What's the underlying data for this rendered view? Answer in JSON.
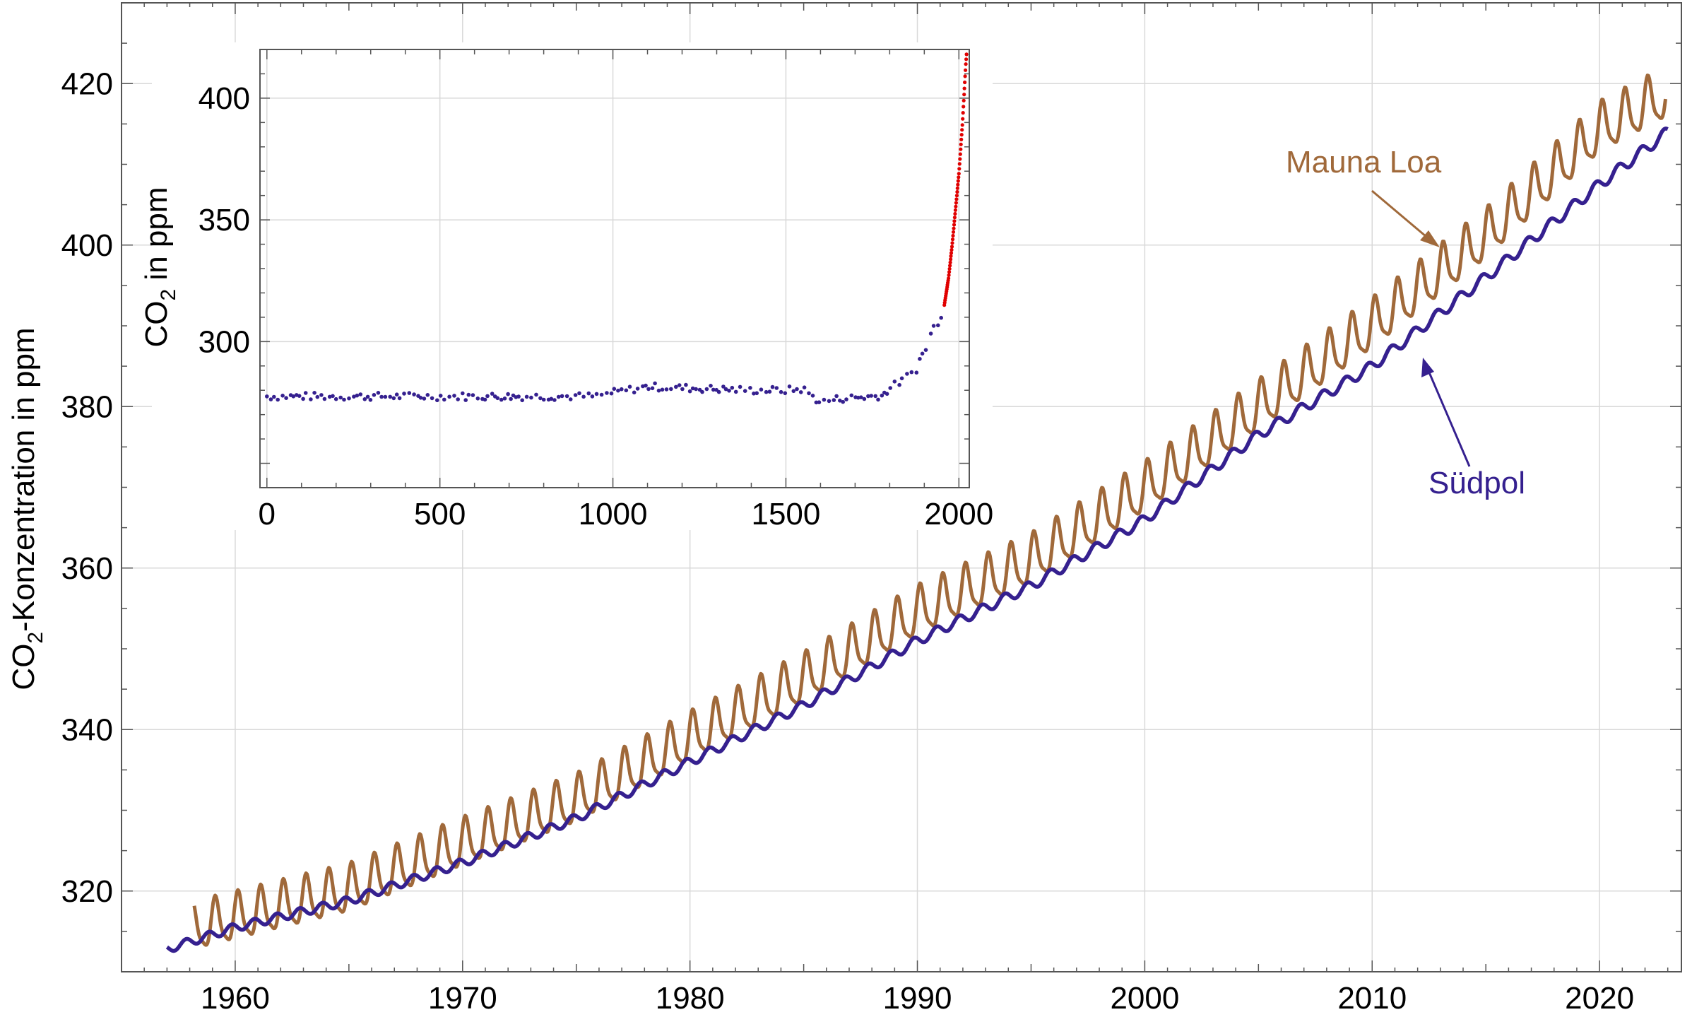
{
  "colors": {
    "mauna_loa": "#a0693a",
    "suedpol": "#35208f",
    "inset_modern": "#e00000",
    "grid": "#d9d9d9",
    "frame": "#555555"
  },
  "main": {
    "ylabel_prefix": "CO",
    "ylabel_sub": "2",
    "ylabel_suffix": "-Konzentration in ppm",
    "annotations": {
      "mauna_loa": "Mauna Loa",
      "suedpol": "Südpol"
    }
  },
  "inset": {
    "ylabel_prefix": "CO",
    "ylabel_sub": "2",
    "ylabel_suffix": " in ppm"
  },
  "chart_data": [
    {
      "type": "line",
      "xlim": [
        1955,
        2023.6
      ],
      "ylim": [
        310,
        430
      ],
      "xticks": [
        1960,
        1970,
        1980,
        1990,
        2000,
        2010,
        2020
      ],
      "yticks": [
        320,
        340,
        360,
        380,
        400,
        420
      ],
      "grid": true,
      "series": [
        {
          "name": "Mauna Loa",
          "x_start": 1958.2,
          "x_end": 2022.9,
          "trend_x": [
            1958,
            1965,
            1970,
            1975,
            1980,
            1985,
            1990,
            1995,
            2000,
            2005,
            2010,
            2015,
            2020,
            2022.9
          ],
          "trend_y": [
            315.2,
            320.0,
            325.7,
            331.1,
            338.8,
            346.1,
            354.4,
            360.8,
            369.7,
            379.8,
            389.9,
            401.0,
            414.2,
            418.5
          ],
          "seasonal_amplitude": [
            3.3,
            3.5
          ]
        },
        {
          "name": "Südpol",
          "x_start": 1957.0,
          "x_end": 2023.0,
          "trend_x": [
            1957,
            1960,
            1965,
            1970,
            1975,
            1980,
            1985,
            1990,
            1995,
            2000,
            2005,
            2010,
            2015,
            2020,
            2023
          ],
          "trend_y": [
            312.8,
            315.5,
            318.8,
            323.5,
            329.0,
            336.0,
            343.0,
            351.0,
            357.8,
            366.0,
            376.5,
            385.0,
            396.0,
            407.5,
            414.0
          ],
          "seasonal_amplitude": [
            0.5,
            0.7
          ]
        }
      ]
    },
    {
      "type": "scatter",
      "xlim": [
        -20,
        2030
      ],
      "ylim": [
        240,
        420
      ],
      "xticks": [
        0,
        500,
        1000,
        1500,
        2000
      ],
      "yticks": [
        300,
        350,
        400
      ],
      "grid": true,
      "ice_core_baseline": {
        "x": [
          0,
          950,
          1000,
          1100,
          1200,
          1400,
          1500,
          1550,
          1600,
          1650,
          1700,
          1750,
          1780,
          1800,
          1850,
          1875,
          1900,
          1925,
          1950
        ],
        "y": [
          277.5,
          277.5,
          279.0,
          281.5,
          281.0,
          280.0,
          280.0,
          280.5,
          275.0,
          276.5,
          277.0,
          277.5,
          278.0,
          281.0,
          285.0,
          289.0,
          296.0,
          305.0,
          312.0
        ]
      },
      "instrumental": {
        "x": [
          1958,
          1960,
          1970,
          1980,
          1990,
          2000,
          2010,
          2020,
          2022
        ],
        "y": [
          315,
          317,
          326,
          339,
          354,
          369,
          389,
          414,
          418
        ]
      }
    }
  ]
}
